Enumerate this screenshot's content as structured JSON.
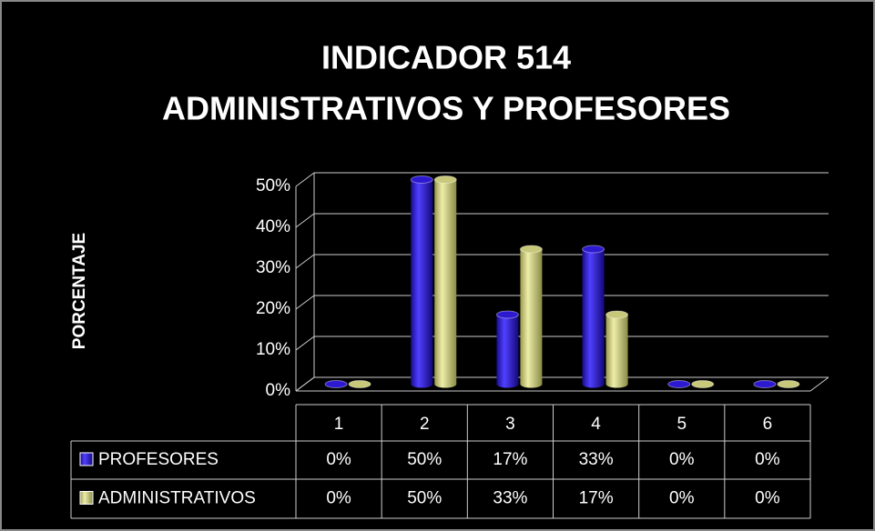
{
  "chart_data": {
    "type": "bar3d",
    "title": [
      "INDICADOR 514",
      "ADMINISTRATIVOS Y PROFESORES"
    ],
    "y_label": "PORCENTAJE",
    "categories": [
      "1",
      "2",
      "3",
      "4",
      "5",
      "6"
    ],
    "series": [
      {
        "name": "PROFESORES",
        "color": "#2d1ad0",
        "values": [
          0,
          50,
          17,
          33,
          0,
          0
        ],
        "value_labels": [
          "0%",
          "50%",
          "17%",
          "33%",
          "0%",
          "0%"
        ]
      },
      {
        "name": "ADMINISTRATIVOS",
        "color": "#c8c87a",
        "values": [
          0,
          50,
          33,
          17,
          0,
          0
        ],
        "value_labels": [
          "0%",
          "50%",
          "33%",
          "17%",
          "0%",
          "0%"
        ]
      }
    ],
    "ylim": [
      0,
      50
    ],
    "yticks": [
      {
        "value": 0,
        "label": "0%"
      },
      {
        "value": 10,
        "label": "10%"
      },
      {
        "value": 20,
        "label": "20%"
      },
      {
        "value": 30,
        "label": "30%"
      },
      {
        "value": 40,
        "label": "40%"
      },
      {
        "value": 50,
        "label": "50%"
      }
    ],
    "grid": true
  }
}
